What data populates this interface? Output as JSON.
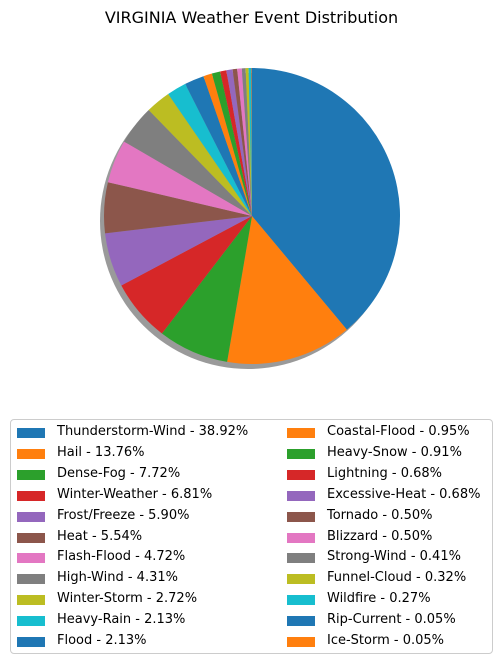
{
  "chart_data": {
    "type": "pie",
    "title": "VIRGINIA Weather Event Distribution",
    "start_angle_deg": 90,
    "direction": "clockwise",
    "shadow": true,
    "legend_placement": "bottom",
    "legend_columns": 2,
    "slices": [
      {
        "label": "Thunderstorm-Wind - 38.92%",
        "value": 38.92,
        "color": "#1f77b4"
      },
      {
        "label": "Hail - 13.76%",
        "value": 13.76,
        "color": "#ff7f0e"
      },
      {
        "label": "Dense-Fog - 7.72%",
        "value": 7.72,
        "color": "#2ca02c"
      },
      {
        "label": "Winter-Weather - 6.81%",
        "value": 6.81,
        "color": "#d62728"
      },
      {
        "label": "Frost/Freeze - 5.90%",
        "value": 5.9,
        "color": "#9467bd"
      },
      {
        "label": "Heat - 5.54%",
        "value": 5.54,
        "color": "#8c564b"
      },
      {
        "label": "Flash-Flood - 4.72%",
        "value": 4.72,
        "color": "#e377c2"
      },
      {
        "label": "High-Wind - 4.31%",
        "value": 4.31,
        "color": "#7f7f7f"
      },
      {
        "label": "Winter-Storm - 2.72%",
        "value": 2.72,
        "color": "#bcbd22"
      },
      {
        "label": "Heavy-Rain - 2.13%",
        "value": 2.13,
        "color": "#17becf"
      },
      {
        "label": "Flood - 2.13%",
        "value": 2.13,
        "color": "#1f77b4"
      },
      {
        "label": "Coastal-Flood - 0.95%",
        "value": 0.95,
        "color": "#ff7f0e"
      },
      {
        "label": "Heavy-Snow - 0.91%",
        "value": 0.91,
        "color": "#2ca02c"
      },
      {
        "label": "Lightning - 0.68%",
        "value": 0.68,
        "color": "#d62728"
      },
      {
        "label": "Excessive-Heat - 0.68%",
        "value": 0.68,
        "color": "#9467bd"
      },
      {
        "label": "Tornado - 0.50%",
        "value": 0.5,
        "color": "#8c564b"
      },
      {
        "label": "Blizzard - 0.50%",
        "value": 0.5,
        "color": "#e377c2"
      },
      {
        "label": "Strong-Wind - 0.41%",
        "value": 0.41,
        "color": "#7f7f7f"
      },
      {
        "label": "Funnel-Cloud - 0.32%",
        "value": 0.32,
        "color": "#bcbd22"
      },
      {
        "label": "Wildfire - 0.27%",
        "value": 0.27,
        "color": "#17becf"
      },
      {
        "label": "Rip-Current - 0.05%",
        "value": 0.05,
        "color": "#1f77b4"
      },
      {
        "label": "Ice-Storm - 0.05%",
        "value": 0.05,
        "color": "#ff7f0e"
      }
    ]
  }
}
